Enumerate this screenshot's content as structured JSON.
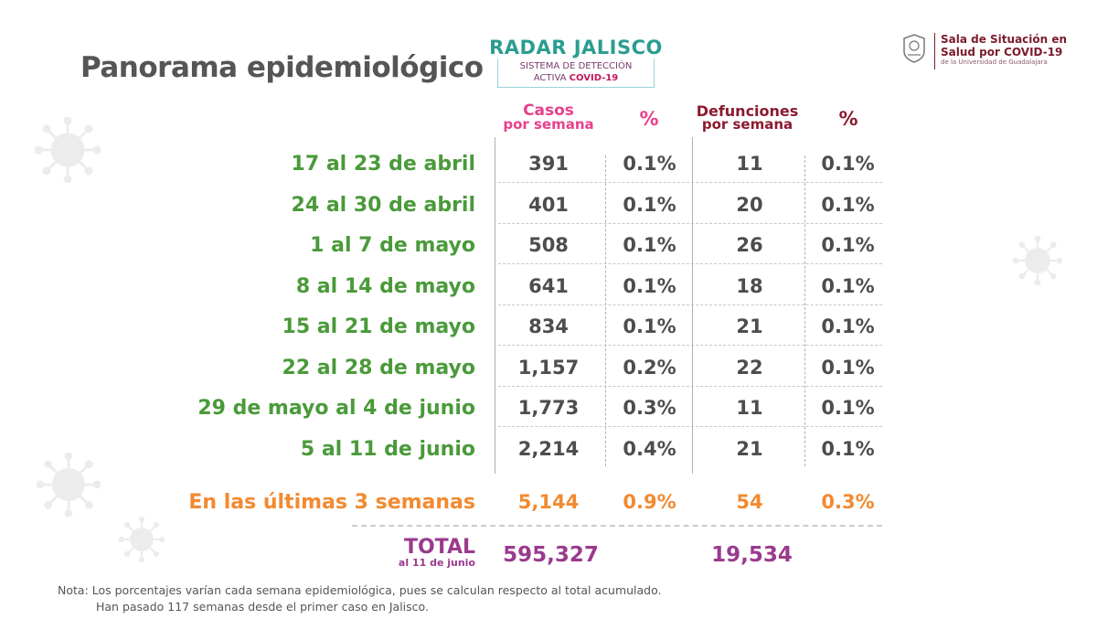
{
  "title": "Panorama epidemiológico",
  "radar": {
    "name": "RADAR JALISCO",
    "line1": "SISTEMA DE DETECCIÓN",
    "line2_prefix": "ACTIVA",
    "line2_bold": "COVID-19"
  },
  "logo": {
    "line1": "Sala de Situación en",
    "line2": "Salud por COVID-19",
    "line3": "de la Universidad de Guadalajara"
  },
  "headers": {
    "cases_line1": "Casos",
    "cases_line2": "por semana",
    "pct": "%",
    "deaths_line1": "Defunciones",
    "deaths_line2": "por semana",
    "pct2": "%"
  },
  "rows": [
    {
      "week": "17 al 23 de abril",
      "cases": "391",
      "cases_pct": "0.1%",
      "deaths": "11",
      "deaths_pct": "0.1%"
    },
    {
      "week": "24 al 30 de abril",
      "cases": "401",
      "cases_pct": "0.1%",
      "deaths": "20",
      "deaths_pct": "0.1%"
    },
    {
      "week": "1 al 7 de mayo",
      "cases": "508",
      "cases_pct": "0.1%",
      "deaths": "26",
      "deaths_pct": "0.1%"
    },
    {
      "week": "8 al 14 de mayo",
      "cases": "641",
      "cases_pct": "0.1%",
      "deaths": "18",
      "deaths_pct": "0.1%"
    },
    {
      "week": "15 al 21 de mayo",
      "cases": "834",
      "cases_pct": "0.1%",
      "deaths": "21",
      "deaths_pct": "0.1%"
    },
    {
      "week": "22 al 28 de mayo",
      "cases": "1,157",
      "cases_pct": "0.2%",
      "deaths": "22",
      "deaths_pct": "0.1%"
    },
    {
      "week": "29 de mayo al 4 de junio",
      "cases": "1,773",
      "cases_pct": "0.3%",
      "deaths": "11",
      "deaths_pct": "0.1%"
    },
    {
      "week": "5 al 11 de junio",
      "cases": "2,214",
      "cases_pct": "0.4%",
      "deaths": "21",
      "deaths_pct": "0.1%"
    }
  ],
  "last3": {
    "label": "En las últimas 3 semanas",
    "cases": "5,144",
    "cases_pct": "0.9%",
    "deaths": "54",
    "deaths_pct": "0.3%"
  },
  "total": {
    "label": "TOTAL",
    "sublabel": "al 11 de junio",
    "cases": "595,327",
    "deaths": "19,534"
  },
  "note": {
    "line1": "Nota: Los porcentajes varían cada semana epidemiológica, pues se calculan respecto al total acumulado.",
    "line2": "Han pasado 117 semanas desde el primer caso en Jalisco."
  },
  "colors": {
    "week_label": "#4a9a3a",
    "highlight": "#f28a30",
    "total": "#9a3a8e",
    "cases_header": "#e8408c",
    "deaths_header": "#8b1a2e"
  }
}
